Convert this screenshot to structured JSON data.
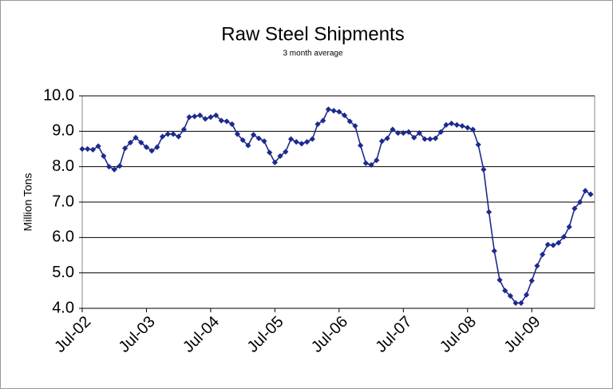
{
  "chart_data": {
    "type": "line",
    "title": "Raw Steel Shipments",
    "subtitle": "3 month average",
    "y_label": "Million Tons",
    "categories": [
      "Jul-02",
      null,
      null,
      null,
      null,
      null,
      null,
      null,
      null,
      null,
      null,
      null,
      "Jul-03",
      null,
      null,
      null,
      null,
      null,
      null,
      null,
      null,
      null,
      null,
      null,
      "Jul-04",
      null,
      null,
      null,
      null,
      null,
      null,
      null,
      null,
      null,
      null,
      null,
      "Jul-05",
      null,
      null,
      null,
      null,
      null,
      null,
      null,
      null,
      null,
      null,
      null,
      "Jul-06",
      null,
      null,
      null,
      null,
      null,
      null,
      null,
      null,
      null,
      null,
      null,
      "Jul-07",
      null,
      null,
      null,
      null,
      null,
      null,
      null,
      null,
      null,
      null,
      null,
      "Jul-08",
      null,
      null,
      null,
      null,
      null,
      null,
      null,
      null,
      null,
      null,
      null,
      "Jul-09",
      null,
      null,
      null,
      null,
      null,
      null,
      null,
      null,
      null,
      null,
      null
    ],
    "values": [
      8.5,
      8.5,
      8.48,
      8.58,
      8.3,
      8.0,
      7.92,
      8.02,
      8.52,
      8.68,
      8.82,
      8.68,
      8.55,
      8.45,
      8.55,
      8.85,
      8.92,
      8.92,
      8.85,
      9.05,
      9.4,
      9.42,
      9.45,
      9.35,
      9.4,
      9.45,
      9.3,
      9.28,
      9.2,
      8.92,
      8.75,
      8.6,
      8.9,
      8.8,
      8.72,
      8.4,
      8.12,
      8.3,
      8.42,
      8.78,
      8.7,
      8.65,
      8.7,
      8.78,
      9.2,
      9.3,
      9.62,
      9.58,
      9.55,
      9.45,
      9.28,
      9.15,
      8.6,
      8.1,
      8.05,
      8.18,
      8.72,
      8.8,
      9.05,
      8.95,
      8.95,
      8.98,
      8.82,
      8.95,
      8.78,
      8.78,
      8.8,
      8.98,
      9.18,
      9.22,
      9.18,
      9.15,
      9.1,
      9.05,
      8.62,
      7.92,
      6.72,
      5.62,
      4.8,
      4.5,
      4.35,
      4.15,
      4.15,
      4.38,
      4.78,
      5.2,
      5.52,
      5.8,
      5.78,
      5.85,
      6.02,
      6.3,
      6.82,
      7.0,
      7.32,
      7.22
    ],
    "color": "#1c2a8c",
    "ylim": [
      4,
      10
    ],
    "yticks": [
      {
        "value": 4,
        "label": "4.0"
      },
      {
        "value": 5,
        "label": "5.0"
      },
      {
        "value": 6,
        "label": "6.0"
      },
      {
        "value": 7,
        "label": "7.0"
      },
      {
        "value": 8,
        "label": "8.0"
      },
      {
        "value": 9,
        "label": "9.0"
      },
      {
        "value": 10,
        "label": "10.0"
      }
    ],
    "grid": true
  }
}
